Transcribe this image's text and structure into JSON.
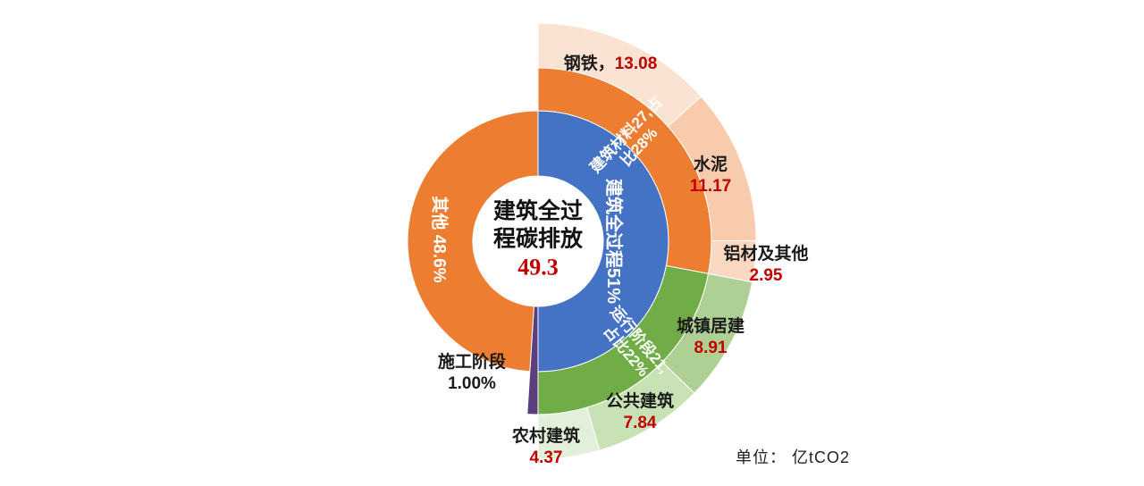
{
  "chart_data": {
    "type": "sunburst",
    "unit_note": "单位： 亿tCO2",
    "center": {
      "line1": "建筑全过",
      "line2": "程碳排放",
      "value": "49.3"
    },
    "colors": {
      "blue": "#4472C4",
      "orange": "#ED7D31",
      "green": "#70AD47",
      "purple": "#5A3E7E",
      "value_red": "#C00000",
      "label_black": "#1a1a1a"
    },
    "rings": [
      {
        "name": "inner",
        "r0": 73,
        "r1": 146,
        "segments": [
          {
            "id": "whole",
            "label_lines": [
              "建筑全过程51%"
            ],
            "display_pct": "51%",
            "span_pct": 50,
            "color": "#4472C4"
          },
          {
            "id": "construction",
            "label": "施工阶段",
            "value": "1.00%",
            "span_pct": 1,
            "color": "#5A3E7E",
            "r1": 194
          },
          {
            "id": "other",
            "label_lines": [
              "其他 48.6%"
            ],
            "display_pct": "48.6%",
            "span_pct": 49,
            "color": "#ED7D31"
          }
        ]
      },
      {
        "name": "middle",
        "r0": 146,
        "r1": 194,
        "segments": [
          {
            "id": "materials",
            "label_lines": [
              "建筑材料27,占",
              "比28%"
            ],
            "display_value": "27",
            "display_pct": "28%",
            "span_pct": 28,
            "color": "#ED7D31"
          },
          {
            "id": "operation",
            "label_lines": [
              "运行阶段21,",
              "占比22%"
            ],
            "display_value": "21",
            "display_pct": "22%",
            "span_pct": 22,
            "color": "#70AD47"
          }
        ]
      },
      {
        "name": "outer",
        "r0": 194,
        "r1": 244,
        "segments": [
          {
            "id": "steel",
            "label": "钢铁，",
            "value": "13.08",
            "span_pct": 13.46,
            "color": "#FBE3D3"
          },
          {
            "id": "cement",
            "label": "水泥",
            "value": "11.17",
            "span_pct": 11.5,
            "color": "#F8CBAD"
          },
          {
            "id": "aluminum",
            "label": "铝材及其他",
            "value": "2.95",
            "span_pct": 3.04,
            "color": "#FAD8C1"
          },
          {
            "id": "urban",
            "label": "城镇居建",
            "value": "8.91",
            "span_pct": 9.28,
            "color": "#AFD095"
          },
          {
            "id": "public",
            "label": "公共建筑",
            "value": "7.84",
            "span_pct": 8.17,
            "color": "#C9E2B5"
          },
          {
            "id": "rural",
            "label": "农村建筑",
            "value": "4.37",
            "span_pct": 4.55,
            "color": "#E2EFDA"
          }
        ]
      }
    ]
  }
}
